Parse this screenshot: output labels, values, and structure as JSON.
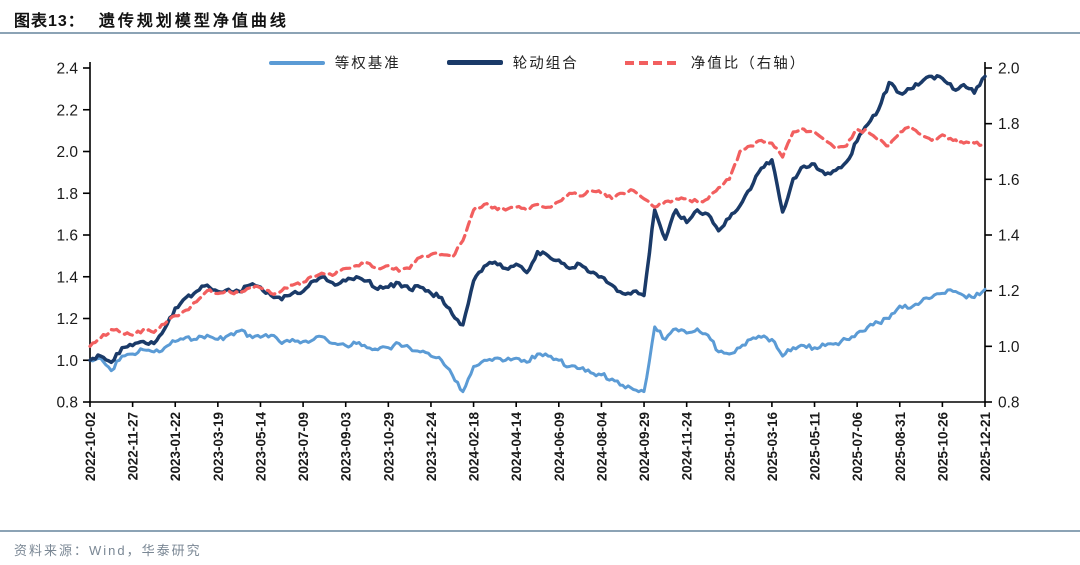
{
  "figure": {
    "label": "图表13：",
    "title": "遗传规划模型净值曲线",
    "source": "资料来源：Wind，华泰研究"
  },
  "colors": {
    "benchmark_blue": "#5b9bd5",
    "portfolio_navy": "#1a3a68",
    "ratio_red": "#f25f5f",
    "axis_black": "#000000",
    "tick_text": "#1a1a1a",
    "rule_gray_blue": "#8ca3b5",
    "source_gray": "#7a8794"
  },
  "chart_data": {
    "type": "line",
    "title": "遗传规划模型净值曲线",
    "legend_position": "top",
    "grid": false,
    "left_axis": {
      "min": 0.8,
      "max": 2.4,
      "step": 0.2,
      "ticks": [
        "0.8",
        "1.0",
        "1.2",
        "1.4",
        "1.6",
        "1.8",
        "2.0",
        "2.2",
        "2.4"
      ]
    },
    "right_axis": {
      "min": 0.8,
      "max": 2.0,
      "step": 0.2,
      "ticks": [
        "0.8",
        "1.0",
        "1.2",
        "1.4",
        "1.6",
        "1.8",
        "2.0"
      ]
    },
    "x_tick_labels": [
      "2022-10-02",
      "2022-11-27",
      "2023-01-22",
      "2023-03-19",
      "2023-05-14",
      "2023-07-09",
      "2023-09-03",
      "2023-10-29",
      "2023-12-24",
      "2024-02-18",
      "2024-04-14",
      "2024-06-09",
      "2024-08-04",
      "2024-09-29",
      "2024-11-24",
      "2025-01-19",
      "2025-03-16",
      "2025-05-11",
      "2025-07-06",
      "2025-08-31",
      "2025-10-26",
      "2025-12-21"
    ],
    "dates": [
      "2022-10-02",
      "2022-10-16",
      "2022-10-30",
      "2022-11-13",
      "2022-11-27",
      "2022-12-11",
      "2022-12-25",
      "2023-01-08",
      "2023-01-22",
      "2023-02-05",
      "2023-02-19",
      "2023-03-05",
      "2023-03-19",
      "2023-04-02",
      "2023-04-16",
      "2023-04-30",
      "2023-05-14",
      "2023-05-28",
      "2023-06-11",
      "2023-06-25",
      "2023-07-09",
      "2023-07-23",
      "2023-08-06",
      "2023-08-20",
      "2023-09-03",
      "2023-09-17",
      "2023-10-01",
      "2023-10-15",
      "2023-10-29",
      "2023-11-12",
      "2023-11-26",
      "2023-12-10",
      "2023-12-24",
      "2024-01-07",
      "2024-01-21",
      "2024-02-04",
      "2024-02-18",
      "2024-03-03",
      "2024-03-17",
      "2024-03-31",
      "2024-04-14",
      "2024-04-28",
      "2024-05-12",
      "2024-05-26",
      "2024-06-09",
      "2024-06-23",
      "2024-07-07",
      "2024-07-21",
      "2024-08-04",
      "2024-08-18",
      "2024-09-01",
      "2024-09-15",
      "2024-09-29",
      "2024-10-13",
      "2024-10-27",
      "2024-11-10",
      "2024-11-24",
      "2024-12-08",
      "2024-12-22",
      "2025-01-05",
      "2025-01-19",
      "2025-02-02",
      "2025-02-16",
      "2025-03-02",
      "2025-03-16",
      "2025-03-30",
      "2025-04-13",
      "2025-04-27",
      "2025-05-11",
      "2025-05-25",
      "2025-06-08",
      "2025-06-22",
      "2025-07-06",
      "2025-07-20",
      "2025-08-03",
      "2025-08-17",
      "2025-08-31",
      "2025-09-14",
      "2025-09-28",
      "2025-10-12",
      "2025-10-26",
      "2025-11-09",
      "2025-11-23",
      "2025-12-07",
      "2025-12-21"
    ],
    "series": [
      {
        "key": "equal-weight-benchmark",
        "name": "等权基准",
        "axis": "left",
        "style": "solid",
        "color": "#5b9bd5",
        "values": [
          1.0,
          1.01,
          0.95,
          1.02,
          1.03,
          1.05,
          1.04,
          1.06,
          1.09,
          1.11,
          1.1,
          1.12,
          1.1,
          1.12,
          1.14,
          1.12,
          1.11,
          1.12,
          1.08,
          1.1,
          1.09,
          1.1,
          1.11,
          1.08,
          1.07,
          1.08,
          1.06,
          1.05,
          1.06,
          1.08,
          1.06,
          1.04,
          1.02,
          1.0,
          0.93,
          0.85,
          0.97,
          1.0,
          1.01,
          1.0,
          1.01,
          0.99,
          1.03,
          1.02,
          1.0,
          0.97,
          0.96,
          0.94,
          0.93,
          0.91,
          0.88,
          0.86,
          0.85,
          1.16,
          1.1,
          1.15,
          1.13,
          1.15,
          1.12,
          1.04,
          1.03,
          1.06,
          1.1,
          1.11,
          1.1,
          1.02,
          1.06,
          1.07,
          1.06,
          1.07,
          1.08,
          1.1,
          1.13,
          1.16,
          1.18,
          1.2,
          1.26,
          1.25,
          1.28,
          1.3,
          1.32,
          1.33,
          1.31,
          1.3,
          1.34
        ]
      },
      {
        "key": "rotation-portfolio",
        "name": "轮动组合",
        "axis": "left",
        "style": "solid",
        "color": "#1a3a68",
        "values": [
          1.0,
          1.02,
          0.99,
          1.06,
          1.07,
          1.09,
          1.08,
          1.15,
          1.25,
          1.3,
          1.33,
          1.36,
          1.33,
          1.34,
          1.33,
          1.36,
          1.35,
          1.31,
          1.29,
          1.32,
          1.33,
          1.38,
          1.4,
          1.36,
          1.38,
          1.4,
          1.38,
          1.34,
          1.35,
          1.37,
          1.34,
          1.35,
          1.32,
          1.3,
          1.22,
          1.17,
          1.38,
          1.45,
          1.47,
          1.44,
          1.46,
          1.42,
          1.52,
          1.5,
          1.48,
          1.44,
          1.46,
          1.42,
          1.4,
          1.36,
          1.32,
          1.33,
          1.31,
          1.72,
          1.58,
          1.72,
          1.66,
          1.72,
          1.7,
          1.62,
          1.68,
          1.74,
          1.82,
          1.92,
          1.96,
          1.71,
          1.87,
          1.93,
          1.94,
          1.89,
          1.91,
          1.95,
          2.05,
          2.13,
          2.2,
          2.33,
          2.28,
          2.3,
          2.33,
          2.36,
          2.35,
          2.3,
          2.32,
          2.28,
          2.36
        ]
      },
      {
        "key": "nav-ratio",
        "name": "净值比（右轴）",
        "axis": "right",
        "style": "dashed",
        "color": "#f25f5f",
        "values": [
          1.0,
          1.03,
          1.06,
          1.05,
          1.04,
          1.06,
          1.05,
          1.08,
          1.11,
          1.13,
          1.16,
          1.2,
          1.19,
          1.2,
          1.19,
          1.21,
          1.21,
          1.19,
          1.2,
          1.22,
          1.23,
          1.25,
          1.26,
          1.26,
          1.28,
          1.29,
          1.3,
          1.28,
          1.29,
          1.27,
          1.28,
          1.32,
          1.33,
          1.33,
          1.32,
          1.38,
          1.49,
          1.51,
          1.5,
          1.49,
          1.5,
          1.49,
          1.51,
          1.5,
          1.52,
          1.55,
          1.54,
          1.56,
          1.55,
          1.53,
          1.55,
          1.56,
          1.53,
          1.5,
          1.52,
          1.53,
          1.53,
          1.52,
          1.53,
          1.57,
          1.6,
          1.7,
          1.72,
          1.74,
          1.73,
          1.68,
          1.77,
          1.78,
          1.77,
          1.74,
          1.71,
          1.72,
          1.78,
          1.77,
          1.74,
          1.72,
          1.77,
          1.79,
          1.76,
          1.74,
          1.76,
          1.74,
          1.73,
          1.73,
          1.72
        ]
      }
    ]
  }
}
